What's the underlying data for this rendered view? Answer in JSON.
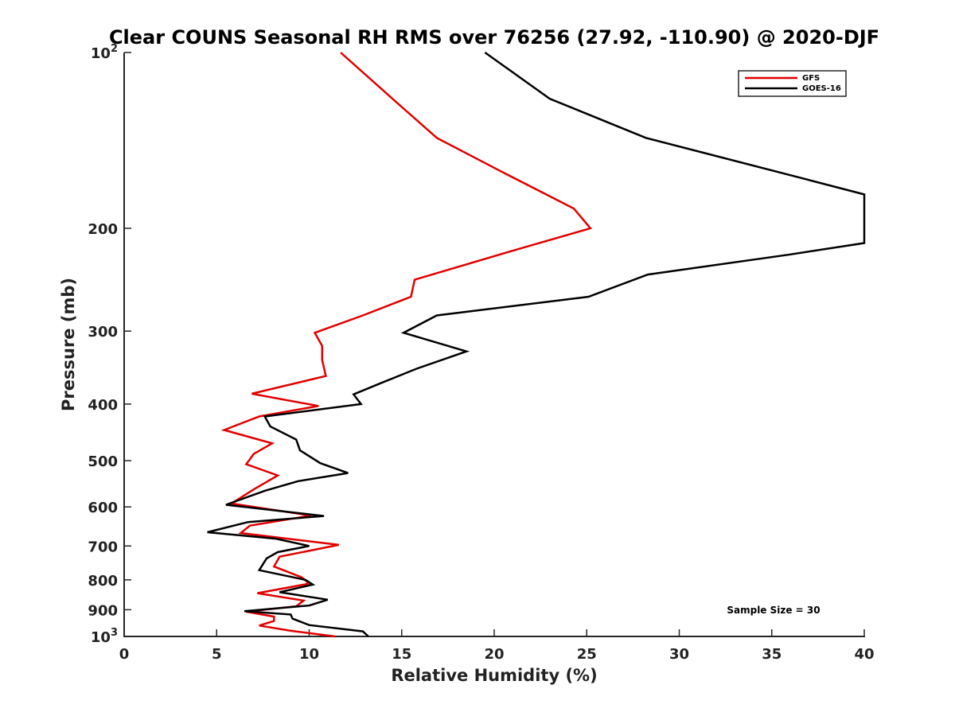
{
  "chart_data": {
    "type": "line",
    "title": "Clear COUNS Seasonal RH RMS over 76256 (27.92, -110.90) @ 2020-DJF",
    "xlabel": "Relative Humidity (%)",
    "ylabel": "Pressure (mb)",
    "xlim": [
      0,
      40
    ],
    "ylim": [
      100,
      1000
    ],
    "yscale": "log",
    "yreversed": true,
    "xticks": [
      0,
      5,
      10,
      15,
      20,
      25,
      30,
      35,
      40
    ],
    "xtick_labels": [
      "0",
      "5",
      "10",
      "15",
      "20",
      "25",
      "30",
      "35",
      "40"
    ],
    "yticks": [
      {
        "value": 100,
        "base": "10",
        "exp": "2"
      },
      {
        "value": 200,
        "base": "200",
        "exp": ""
      },
      {
        "value": 300,
        "base": "300",
        "exp": ""
      },
      {
        "value": 400,
        "base": "400",
        "exp": ""
      },
      {
        "value": 500,
        "base": "500",
        "exp": ""
      },
      {
        "value": 600,
        "base": "600",
        "exp": ""
      },
      {
        "value": 700,
        "base": "700",
        "exp": ""
      },
      {
        "value": 800,
        "base": "800",
        "exp": ""
      },
      {
        "value": 900,
        "base": "900",
        "exp": ""
      },
      {
        "value": 1000,
        "base": "10",
        "exp": "3"
      }
    ],
    "grid": false,
    "legend_position": "top-right",
    "annotation": "Sample Size = 30",
    "series": [
      {
        "name": "GFS",
        "color": "#e00000",
        "points": [
          [
            11.7,
            100
          ],
          [
            14.5,
            120
          ],
          [
            16.9,
            140
          ],
          [
            20.4,
            160
          ],
          [
            24.3,
            185
          ],
          [
            25.2,
            200
          ],
          [
            21.1,
            218
          ],
          [
            15.7,
            245
          ],
          [
            15.5,
            262
          ],
          [
            12.9,
            282
          ],
          [
            10.3,
            302
          ],
          [
            10.7,
            318
          ],
          [
            10.7,
            336
          ],
          [
            10.9,
            358
          ],
          [
            6.9,
            384
          ],
          [
            10.5,
            403
          ],
          [
            7.3,
            420
          ],
          [
            5.4,
            443
          ],
          [
            8.0,
            467
          ],
          [
            7.0,
            487
          ],
          [
            6.6,
            507
          ],
          [
            8.3,
            530
          ],
          [
            7.0,
            560
          ],
          [
            5.8,
            592
          ],
          [
            10.1,
            621
          ],
          [
            6.8,
            646
          ],
          [
            6.3,
            665
          ],
          [
            11.6,
            697
          ],
          [
            8.4,
            730
          ],
          [
            8.1,
            759
          ],
          [
            9.6,
            792
          ],
          [
            10.0,
            812
          ],
          [
            7.2,
            843
          ],
          [
            9.7,
            868
          ],
          [
            9.3,
            888
          ],
          [
            6.6,
            907
          ],
          [
            8.1,
            925
          ],
          [
            8.1,
            941
          ],
          [
            7.3,
            958
          ],
          [
            9.0,
            978
          ],
          [
            11.4,
            1000
          ]
        ]
      },
      {
        "name": "GOES-16",
        "color": "#000000",
        "points": [
          [
            19.5,
            100
          ],
          [
            23.0,
            120
          ],
          [
            28.2,
            140
          ],
          [
            36.9,
            165
          ],
          [
            40.0,
            175
          ],
          [
            40.0,
            212
          ],
          [
            35.9,
            222
          ],
          [
            28.3,
            240
          ],
          [
            25.1,
            262
          ],
          [
            16.9,
            282
          ],
          [
            15.1,
            302
          ],
          [
            18.5,
            325
          ],
          [
            15.8,
            348
          ],
          [
            13.9,
            368
          ],
          [
            12.4,
            385
          ],
          [
            12.8,
            400
          ],
          [
            7.6,
            420
          ],
          [
            7.9,
            437
          ],
          [
            9.3,
            460
          ],
          [
            9.5,
            480
          ],
          [
            10.6,
            505
          ],
          [
            12.1,
            525
          ],
          [
            9.4,
            542
          ],
          [
            7.6,
            563
          ],
          [
            5.5,
            595
          ],
          [
            10.8,
            622
          ],
          [
            6.7,
            637
          ],
          [
            4.5,
            663
          ],
          [
            8.2,
            680
          ],
          [
            10.0,
            700
          ],
          [
            8.3,
            717
          ],
          [
            7.7,
            735
          ],
          [
            7.3,
            770
          ],
          [
            9.8,
            800
          ],
          [
            10.2,
            815
          ],
          [
            8.4,
            840
          ],
          [
            11.0,
            865
          ],
          [
            10.0,
            885
          ],
          [
            6.5,
            905
          ],
          [
            9.0,
            917
          ],
          [
            9.1,
            932
          ],
          [
            10.0,
            956
          ],
          [
            12.9,
            980
          ],
          [
            13.2,
            1000
          ]
        ]
      }
    ]
  }
}
